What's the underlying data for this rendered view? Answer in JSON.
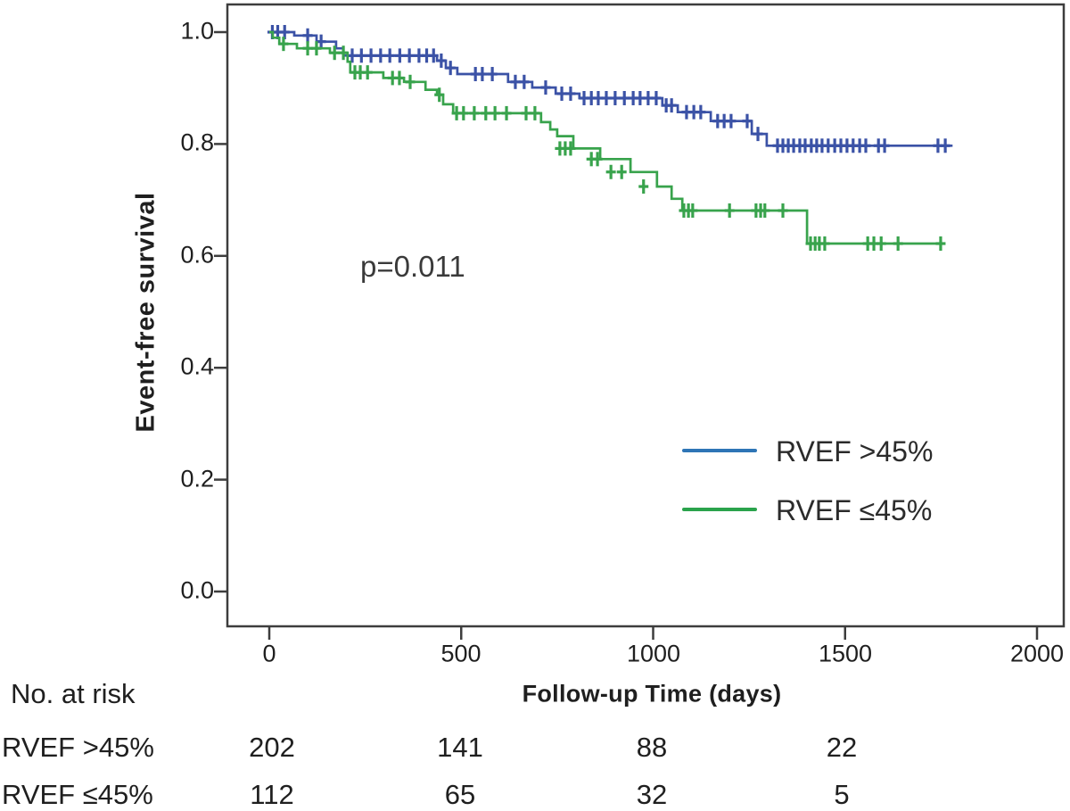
{
  "chart_data": {
    "type": "line",
    "subtype": "kaplan-meier-step",
    "title": "",
    "xlabel": "Follow-up Time (days)",
    "ylabel": "Event-free survival",
    "annotation": "p=0.011",
    "grid": false,
    "legend_position": "right-middle",
    "xaxis": {
      "tick_labels": [
        "0",
        "500",
        "1000",
        "1500",
        "2000"
      ],
      "tick_values": [
        0,
        500,
        1000,
        1500,
        2000
      ],
      "range": [
        0,
        2070
      ]
    },
    "yaxis": {
      "tick_labels": [
        "1.0",
        "0.8",
        "0.6",
        "0.4",
        "0.2",
        "0.0"
      ],
      "tick_values": [
        1.0,
        0.8,
        0.6,
        0.4,
        0.2,
        0.0
      ],
      "range": [
        0,
        1
      ]
    },
    "legend": {
      "items": [
        {
          "label": "RVEF >45%",
          "color": "#2e75b6"
        },
        {
          "label": "RVEF ≤45%",
          "color": "#2aa34c"
        }
      ]
    },
    "frame_color": "#3d3d3d",
    "series": [
      {
        "name": "RVEF >45%",
        "color": "#3b52a6",
        "end_t": 1780,
        "steps": [
          [
            0,
            1.0
          ],
          [
            65,
            0.994
          ],
          [
            123,
            0.983
          ],
          [
            174,
            0.971
          ],
          [
            193,
            0.958
          ],
          [
            437,
            0.949
          ],
          [
            460,
            0.936
          ],
          [
            490,
            0.925
          ],
          [
            622,
            0.911
          ],
          [
            685,
            0.901
          ],
          [
            746,
            0.89
          ],
          [
            808,
            0.882
          ],
          [
            1024,
            0.869
          ],
          [
            1064,
            0.857
          ],
          [
            1150,
            0.841
          ],
          [
            1257,
            0.818
          ],
          [
            1296,
            0.797
          ]
        ],
        "censors": [
          [
            8,
            1.0
          ],
          [
            22,
            1.0
          ],
          [
            40,
            1.0
          ],
          [
            100,
            0.994
          ],
          [
            135,
            0.983
          ],
          [
            216,
            0.958
          ],
          [
            240,
            0.958
          ],
          [
            265,
            0.958
          ],
          [
            290,
            0.958
          ],
          [
            314,
            0.958
          ],
          [
            340,
            0.958
          ],
          [
            365,
            0.958
          ],
          [
            390,
            0.958
          ],
          [
            410,
            0.958
          ],
          [
            428,
            0.958
          ],
          [
            448,
            0.949
          ],
          [
            472,
            0.936
          ],
          [
            537,
            0.925
          ],
          [
            555,
            0.925
          ],
          [
            581,
            0.925
          ],
          [
            641,
            0.911
          ],
          [
            664,
            0.911
          ],
          [
            720,
            0.901
          ],
          [
            762,
            0.89
          ],
          [
            785,
            0.89
          ],
          [
            820,
            0.882
          ],
          [
            839,
            0.882
          ],
          [
            857,
            0.882
          ],
          [
            878,
            0.882
          ],
          [
            901,
            0.882
          ],
          [
            925,
            0.882
          ],
          [
            948,
            0.882
          ],
          [
            966,
            0.882
          ],
          [
            987,
            0.882
          ],
          [
            1008,
            0.882
          ],
          [
            1034,
            0.869
          ],
          [
            1048,
            0.869
          ],
          [
            1087,
            0.857
          ],
          [
            1106,
            0.857
          ],
          [
            1124,
            0.857
          ],
          [
            1168,
            0.841
          ],
          [
            1185,
            0.841
          ],
          [
            1203,
            0.841
          ],
          [
            1245,
            0.841
          ],
          [
            1273,
            0.818
          ],
          [
            1324,
            0.797
          ],
          [
            1338,
            0.797
          ],
          [
            1352,
            0.797
          ],
          [
            1366,
            0.797
          ],
          [
            1382,
            0.797
          ],
          [
            1396,
            0.797
          ],
          [
            1412,
            0.797
          ],
          [
            1426,
            0.797
          ],
          [
            1440,
            0.797
          ],
          [
            1456,
            0.797
          ],
          [
            1473,
            0.797
          ],
          [
            1489,
            0.797
          ],
          [
            1505,
            0.797
          ],
          [
            1521,
            0.797
          ],
          [
            1538,
            0.797
          ],
          [
            1554,
            0.797
          ],
          [
            1587,
            0.797
          ],
          [
            1603,
            0.797
          ],
          [
            1742,
            0.797
          ],
          [
            1761,
            0.797
          ]
        ]
      },
      {
        "name": "RVEF ≤45%",
        "color": "#38a34c",
        "end_t": 1758,
        "steps": [
          [
            0,
            1.0
          ],
          [
            9,
            0.99
          ],
          [
            26,
            0.979
          ],
          [
            72,
            0.971
          ],
          [
            158,
            0.963
          ],
          [
            204,
            0.947
          ],
          [
            211,
            0.928
          ],
          [
            297,
            0.918
          ],
          [
            351,
            0.911
          ],
          [
            407,
            0.897
          ],
          [
            437,
            0.888
          ],
          [
            453,
            0.871
          ],
          [
            479,
            0.855
          ],
          [
            708,
            0.839
          ],
          [
            732,
            0.826
          ],
          [
            750,
            0.814
          ],
          [
            792,
            0.792
          ],
          [
            862,
            0.773
          ],
          [
            941,
            0.75
          ],
          [
            1010,
            0.724
          ],
          [
            1048,
            0.702
          ],
          [
            1076,
            0.681
          ],
          [
            1401,
            0.622
          ]
        ],
        "censors": [
          [
            37,
            0.979
          ],
          [
            100,
            0.971
          ],
          [
            123,
            0.971
          ],
          [
            170,
            0.963
          ],
          [
            193,
            0.963
          ],
          [
            223,
            0.928
          ],
          [
            237,
            0.928
          ],
          [
            256,
            0.928
          ],
          [
            321,
            0.918
          ],
          [
            339,
            0.918
          ],
          [
            367,
            0.911
          ],
          [
            443,
            0.888
          ],
          [
            488,
            0.855
          ],
          [
            506,
            0.855
          ],
          [
            534,
            0.855
          ],
          [
            564,
            0.855
          ],
          [
            588,
            0.855
          ],
          [
            618,
            0.855
          ],
          [
            669,
            0.855
          ],
          [
            692,
            0.855
          ],
          [
            757,
            0.792
          ],
          [
            771,
            0.792
          ],
          [
            785,
            0.792
          ],
          [
            839,
            0.773
          ],
          [
            855,
            0.773
          ],
          [
            890,
            0.75
          ],
          [
            918,
            0.75
          ],
          [
            975,
            0.724
          ],
          [
            1080,
            0.681
          ],
          [
            1092,
            0.681
          ],
          [
            1103,
            0.681
          ],
          [
            1199,
            0.681
          ],
          [
            1268,
            0.681
          ],
          [
            1280,
            0.681
          ],
          [
            1291,
            0.681
          ],
          [
            1338,
            0.681
          ],
          [
            1410,
            0.622
          ],
          [
            1422,
            0.622
          ],
          [
            1433,
            0.622
          ],
          [
            1447,
            0.622
          ],
          [
            1559,
            0.622
          ],
          [
            1575,
            0.622
          ],
          [
            1594,
            0.622
          ],
          [
            1638,
            0.622
          ],
          [
            1749,
            0.622
          ]
        ]
      }
    ]
  },
  "risk_table": {
    "header": "No. at risk",
    "time_points": [
      0,
      500,
      1000,
      1500
    ],
    "rows": [
      {
        "label": "RVEF >45%",
        "counts": [
          "202",
          "141",
          "88",
          "22"
        ]
      },
      {
        "label": "RVEF ≤45%",
        "counts": [
          "112",
          "65",
          "32",
          "5"
        ]
      }
    ]
  }
}
